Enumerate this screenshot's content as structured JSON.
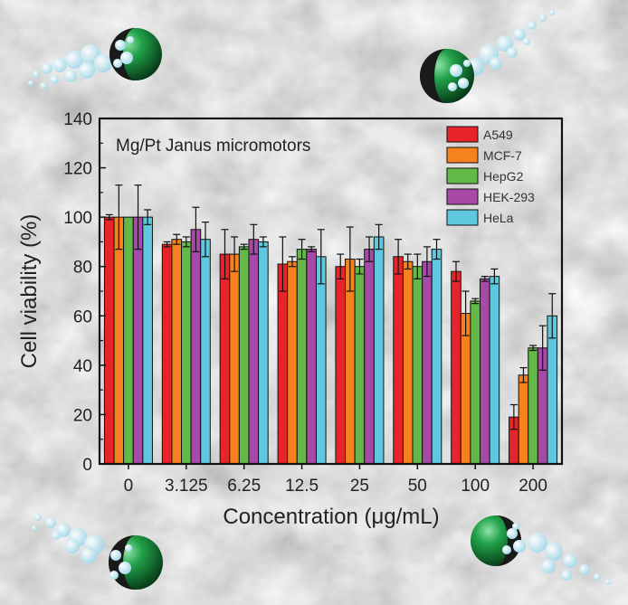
{
  "chart_data": {
    "type": "bar",
    "title": "Mg/Pt Janus micromotors",
    "xlabel": "Concentration (μg/mL)",
    "ylabel": "Cell viability (%)",
    "ylim": [
      0,
      140
    ],
    "yticks": [
      0,
      20,
      40,
      60,
      80,
      100,
      120,
      140
    ],
    "categories": [
      "0",
      "3.125",
      "6.25",
      "12.5",
      "25",
      "50",
      "100",
      "200"
    ],
    "legend_position": "top-right",
    "grid": false,
    "series": [
      {
        "name": "A549",
        "color": "#e8242b",
        "values": [
          100,
          89,
          85,
          81,
          80,
          84,
          78,
          19
        ],
        "errors": [
          1,
          1,
          10,
          11,
          5,
          7,
          4,
          5
        ]
      },
      {
        "name": "MCF-7",
        "color": "#f5821f",
        "values": [
          100,
          91,
          85,
          82,
          83,
          82,
          61,
          36
        ],
        "errors": [
          13,
          2,
          7,
          2,
          13,
          3,
          9,
          3
        ]
      },
      {
        "name": "HepG2",
        "color": "#62b946",
        "values": [
          100,
          90,
          88,
          87,
          80,
          80,
          66,
          47
        ],
        "errors": [
          0,
          2,
          1,
          4,
          3,
          5,
          1,
          1
        ]
      },
      {
        "name": "HEK-293",
        "color": "#a74aa7",
        "values": [
          100,
          95,
          91,
          87,
          87,
          82,
          75,
          47
        ],
        "errors": [
          13,
          9,
          6,
          1,
          5,
          6,
          1,
          9
        ]
      },
      {
        "name": "HeLa",
        "color": "#5fc8dd",
        "values": [
          100,
          91,
          90,
          84,
          92,
          87,
          76,
          60
        ],
        "errors": [
          3,
          7,
          2,
          11,
          5,
          4,
          3,
          9
        ]
      }
    ]
  }
}
